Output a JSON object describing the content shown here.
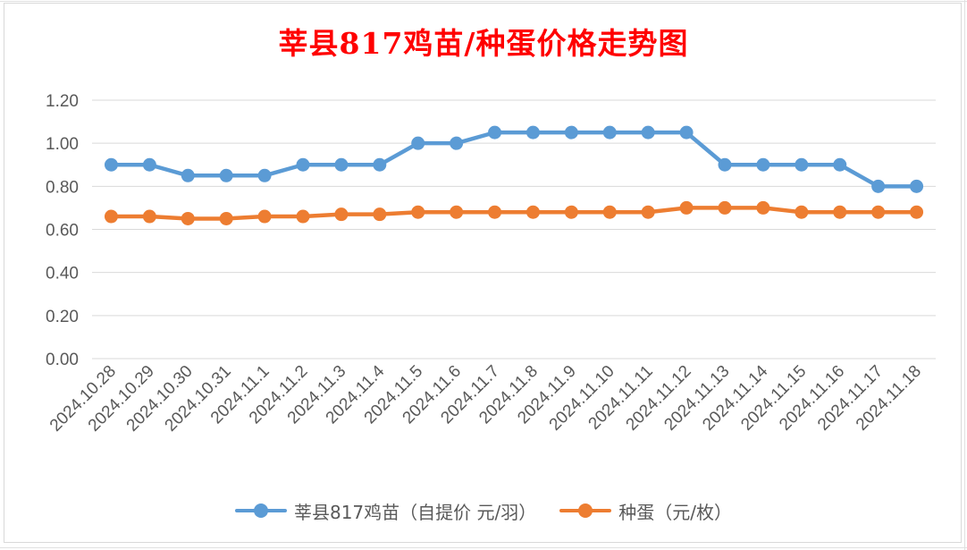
{
  "chart_data": {
    "type": "line",
    "title": "莘县817鸡苗/种蛋价格走势图",
    "categories": [
      "2024.10.28",
      "2024.10.29",
      "2024.10.30",
      "2024.10.31",
      "2024.11.1",
      "2024.11.2",
      "2024.11.3",
      "2024.11.4",
      "2024.11.5",
      "2024.11.6",
      "2024.11.7",
      "2024.11.8",
      "2024.11.9",
      "2024.11.10",
      "2024.11.11",
      "2024.11.12",
      "2024.11.13",
      "2024.11.14",
      "2024.11.15",
      "2024.11.16",
      "2024.11.17",
      "2024.11.18"
    ],
    "series": [
      {
        "name": "莘县817鸡苗（自提价 元/羽）",
        "color": "#5b9bd5",
        "values": [
          0.9,
          0.9,
          0.85,
          0.85,
          0.85,
          0.9,
          0.9,
          0.9,
          1.0,
          1.0,
          1.05,
          1.05,
          1.05,
          1.05,
          1.05,
          1.05,
          0.9,
          0.9,
          0.9,
          0.9,
          0.8,
          0.8
        ]
      },
      {
        "name": "种蛋（元/枚）",
        "color": "#ed7d31",
        "values": [
          0.66,
          0.66,
          0.65,
          0.65,
          0.66,
          0.66,
          0.67,
          0.67,
          0.68,
          0.68,
          0.68,
          0.68,
          0.68,
          0.68,
          0.68,
          0.7,
          0.7,
          0.7,
          0.68,
          0.68,
          0.68,
          0.68
        ]
      }
    ],
    "ylim": [
      0,
      1.2
    ],
    "yticks": [
      "0.00",
      "0.20",
      "0.40",
      "0.60",
      "0.80",
      "1.00",
      "1.20"
    ],
    "xlabel": "",
    "ylabel": "",
    "grid": true,
    "legend_position": "bottom",
    "title_color": "#ff0000"
  }
}
